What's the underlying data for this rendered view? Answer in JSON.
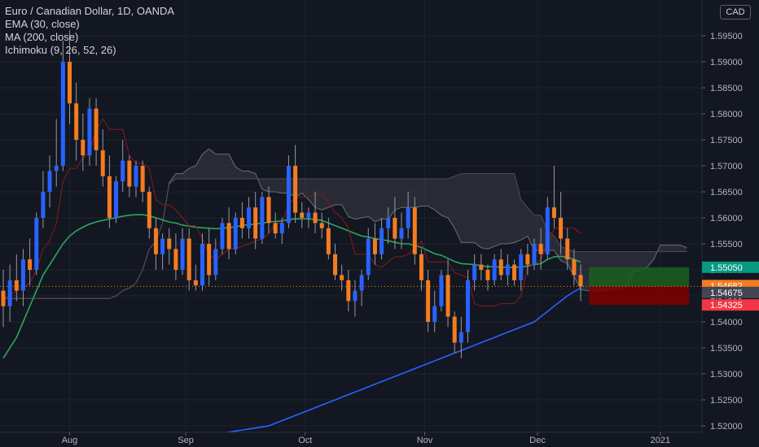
{
  "legend": {
    "title": "Euro / Canadian Dollar, 1D, OANDA",
    "studies": [
      "EMA (30, close)",
      "MA (200, close)",
      "Ichimoku (9, 26, 52, 26)"
    ]
  },
  "currency_button": "CAD",
  "colors": {
    "background": "#131722",
    "grid": "#1f2330",
    "up_candle": "#2962ff",
    "down_candle": "#f57c1f",
    "ema": "#2ca55b",
    "ma200": "#2962ff",
    "cloud": "#3a3d45",
    "conversion": "#8b1a1a",
    "target_zone": "#1b5e20",
    "stop_zone": "#7f0000",
    "current_price": "#ff9800"
  },
  "chart_data": {
    "type": "candlestick",
    "title": "Euro / Canadian Dollar, 1D, OANDA",
    "ylim": [
      1.52,
      1.6
    ],
    "y_ticks": [
      "1.52000",
      "1.52500",
      "1.53000",
      "1.53500",
      "1.54000",
      "1.54500",
      "1.55000",
      "1.55500",
      "1.56000",
      "1.56500",
      "1.57000",
      "1.57500",
      "1.58000",
      "1.58500",
      "1.59000",
      "1.59500"
    ],
    "x_ticks": [
      "Aug",
      "Sep",
      "Oct",
      "Nov",
      "Dec",
      "2021"
    ],
    "price_tags": [
      {
        "label": "1.55050",
        "value": 1.5505,
        "color": "#089981"
      },
      {
        "label": "1.54682",
        "value": 1.54682,
        "color": "#f57c1f"
      },
      {
        "label": "1.54675",
        "value": 1.54675,
        "color": "#434651"
      },
      {
        "label": "1.54325",
        "value": 1.54325,
        "color": "#f23645"
      }
    ],
    "current_price": 1.54682,
    "position": {
      "entry": 1.54682,
      "target": 1.5505,
      "stop": 1.54325
    },
    "series": [
      {
        "name": "EMA (30, close)"
      },
      {
        "name": "MA (200, close)"
      },
      {
        "name": "Ichimoku (9, 26, 52, 26)"
      }
    ],
    "candles": [
      [
        1.546,
        1.55,
        1.539,
        1.543
      ],
      [
        1.543,
        1.551,
        1.54,
        1.548
      ],
      [
        1.548,
        1.553,
        1.544,
        1.546
      ],
      [
        1.546,
        1.554,
        1.543,
        1.552
      ],
      [
        1.552,
        1.556,
        1.547,
        1.55
      ],
      [
        1.55,
        1.561,
        1.549,
        1.56
      ],
      [
        1.56,
        1.569,
        1.558,
        1.565
      ],
      [
        1.565,
        1.572,
        1.562,
        1.569
      ],
      [
        1.569,
        1.579,
        1.566,
        1.57
      ],
      [
        1.57,
        1.594,
        1.569,
        1.59
      ],
      [
        1.59,
        1.596,
        1.578,
        1.582
      ],
      [
        1.582,
        1.586,
        1.571,
        1.575
      ],
      [
        1.575,
        1.58,
        1.569,
        1.572
      ],
      [
        1.572,
        1.583,
        1.57,
        1.581
      ],
      [
        1.581,
        1.583,
        1.57,
        1.573
      ],
      [
        1.573,
        1.577,
        1.566,
        1.568
      ],
      [
        1.568,
        1.572,
        1.558,
        1.56
      ],
      [
        1.56,
        1.568,
        1.559,
        1.567
      ],
      [
        1.567,
        1.575,
        1.565,
        1.571
      ],
      [
        1.571,
        1.572,
        1.564,
        1.566
      ],
      [
        1.566,
        1.571,
        1.564,
        1.57
      ],
      [
        1.57,
        1.571,
        1.563,
        1.565
      ],
      [
        1.565,
        1.566,
        1.556,
        1.558
      ],
      [
        1.558,
        1.56,
        1.55,
        1.553
      ],
      [
        1.553,
        1.557,
        1.55,
        1.556
      ],
      [
        1.556,
        1.558,
        1.551,
        1.554
      ],
      [
        1.554,
        1.557,
        1.548,
        1.55
      ],
      [
        1.55,
        1.558,
        1.549,
        1.556
      ],
      [
        1.556,
        1.558,
        1.546,
        1.548
      ],
      [
        1.548,
        1.551,
        1.546,
        1.547
      ],
      [
        1.547,
        1.557,
        1.546,
        1.555
      ],
      [
        1.555,
        1.558,
        1.547,
        1.549
      ],
      [
        1.549,
        1.556,
        1.548,
        1.554
      ],
      [
        1.554,
        1.56,
        1.553,
        1.559
      ],
      [
        1.559,
        1.562,
        1.552,
        1.554
      ],
      [
        1.554,
        1.561,
        1.553,
        1.56
      ],
      [
        1.56,
        1.563,
        1.556,
        1.558
      ],
      [
        1.558,
        1.564,
        1.556,
        1.562
      ],
      [
        1.562,
        1.565,
        1.554,
        1.556
      ],
      [
        1.556,
        1.565,
        1.555,
        1.564
      ],
      [
        1.564,
        1.566,
        1.557,
        1.559
      ],
      [
        1.559,
        1.561,
        1.556,
        1.557
      ],
      [
        1.557,
        1.56,
        1.555,
        1.559
      ],
      [
        1.559,
        1.572,
        1.558,
        1.57
      ],
      [
        1.57,
        1.574,
        1.559,
        1.561
      ],
      [
        1.561,
        1.563,
        1.558,
        1.56
      ],
      [
        1.56,
        1.562,
        1.558,
        1.561
      ],
      [
        1.561,
        1.565,
        1.557,
        1.559
      ],
      [
        1.559,
        1.561,
        1.556,
        1.558
      ],
      [
        1.558,
        1.56,
        1.552,
        1.553
      ],
      [
        1.553,
        1.555,
        1.548,
        1.549
      ],
      [
        1.549,
        1.551,
        1.546,
        1.548
      ],
      [
        1.548,
        1.55,
        1.542,
        1.544
      ],
      [
        1.544,
        1.548,
        1.541,
        1.546
      ],
      [
        1.546,
        1.55,
        1.543,
        1.549
      ],
      [
        1.549,
        1.558,
        1.548,
        1.556
      ],
      [
        1.556,
        1.559,
        1.551,
        1.553
      ],
      [
        1.553,
        1.56,
        1.552,
        1.558
      ],
      [
        1.558,
        1.562,
        1.555,
        1.56
      ],
      [
        1.56,
        1.564,
        1.554,
        1.556
      ],
      [
        1.556,
        1.561,
        1.554,
        1.558
      ],
      [
        1.558,
        1.565,
        1.556,
        1.562
      ],
      [
        1.562,
        1.564,
        1.551,
        1.553
      ],
      [
        1.553,
        1.554,
        1.546,
        1.548
      ],
      [
        1.548,
        1.55,
        1.538,
        1.54
      ],
      [
        1.54,
        1.546,
        1.538,
        1.543
      ],
      [
        1.543,
        1.55,
        1.542,
        1.549
      ],
      [
        1.549,
        1.552,
        1.539,
        1.541
      ],
      [
        1.541,
        1.542,
        1.534,
        1.536
      ],
      [
        1.536,
        1.541,
        1.533,
        1.538
      ],
      [
        1.538,
        1.55,
        1.536,
        1.548
      ],
      [
        1.548,
        1.553,
        1.546,
        1.551
      ],
      [
        1.551,
        1.553,
        1.548,
        1.55
      ],
      [
        1.55,
        1.551,
        1.546,
        1.548
      ],
      [
        1.548,
        1.553,
        1.547,
        1.552
      ],
      [
        1.552,
        1.554,
        1.548,
        1.549
      ],
      [
        1.549,
        1.553,
        1.547,
        1.551
      ],
      [
        1.551,
        1.552,
        1.547,
        1.548
      ],
      [
        1.548,
        1.554,
        1.546,
        1.553
      ],
      [
        1.553,
        1.555,
        1.549,
        1.551
      ],
      [
        1.551,
        1.556,
        1.55,
        1.555
      ],
      [
        1.555,
        1.558,
        1.55,
        1.553
      ],
      [
        1.553,
        1.564,
        1.552,
        1.562
      ],
      [
        1.562,
        1.57,
        1.558,
        1.56
      ],
      [
        1.56,
        1.565,
        1.553,
        1.556
      ],
      [
        1.556,
        1.558,
        1.55,
        1.552
      ],
      [
        1.552,
        1.554,
        1.547,
        1.549
      ],
      [
        1.549,
        1.551,
        1.544,
        1.5468
      ]
    ],
    "ema30": [
      1.533,
      1.535,
      1.537,
      1.54,
      1.543,
      1.546,
      1.549,
      1.551,
      1.553,
      1.555,
      1.5565,
      1.5575,
      1.5582,
      1.5588,
      1.5592,
      1.5595,
      1.5598,
      1.56,
      1.5603,
      1.5605,
      1.5606,
      1.5606,
      1.5604,
      1.56,
      1.5596,
      1.5592,
      1.559,
      1.5586,
      1.5584,
      1.5582,
      1.5581,
      1.558,
      1.5579,
      1.558,
      1.5581,
      1.5583,
      1.5585,
      1.5587,
      1.5588,
      1.559,
      1.5592,
      1.5593,
      1.5594,
      1.5597,
      1.5598,
      1.5598,
      1.5598,
      1.5597,
      1.5595,
      1.559,
      1.5585,
      1.558,
      1.5575,
      1.557,
      1.5565,
      1.5563,
      1.556,
      1.5558,
      1.5556,
      1.5553,
      1.555,
      1.555,
      1.5547,
      1.5543,
      1.5537,
      1.5531,
      1.5528,
      1.5522,
      1.5516,
      1.5512,
      1.5511,
      1.551,
      1.5508,
      1.5506,
      1.5506,
      1.5505,
      1.5505,
      1.5504,
      1.5506,
      1.5507,
      1.551,
      1.5512,
      1.552,
      1.5525,
      1.5526,
      1.5524,
      1.552,
      1.5515
    ],
    "ma200": [
      1.512,
      1.5122,
      1.5124,
      1.5126,
      1.5128,
      1.513,
      1.5132,
      1.5134,
      1.5136,
      1.5138,
      1.514,
      1.5142,
      1.5144,
      1.5146,
      1.5148,
      1.515,
      1.5152,
      1.5154,
      1.5156,
      1.5158,
      1.516,
      1.5162,
      1.5164,
      1.5166,
      1.5168,
      1.517,
      1.5172,
      1.5174,
      1.5176,
      1.5178,
      1.518,
      1.5182,
      1.5184,
      1.5186,
      1.5188,
      1.519,
      1.5192,
      1.5194,
      1.5196,
      1.5198,
      1.52,
      1.5205,
      1.521,
      1.5215,
      1.522,
      1.5225,
      1.523,
      1.5235,
      1.524,
      1.5245,
      1.525,
      1.5255,
      1.526,
      1.5265,
      1.527,
      1.5275,
      1.528,
      1.5285,
      1.529,
      1.5295,
      1.53,
      1.5305,
      1.531,
      1.5315,
      1.532,
      1.5325,
      1.533,
      1.5335,
      1.534,
      1.5345,
      1.535,
      1.5355,
      1.536,
      1.5365,
      1.537,
      1.5375,
      1.538,
      1.5385,
      1.539,
      1.5395,
      1.54,
      1.541,
      1.542,
      1.543,
      1.544,
      1.545,
      1.5458,
      1.5465
    ]
  }
}
